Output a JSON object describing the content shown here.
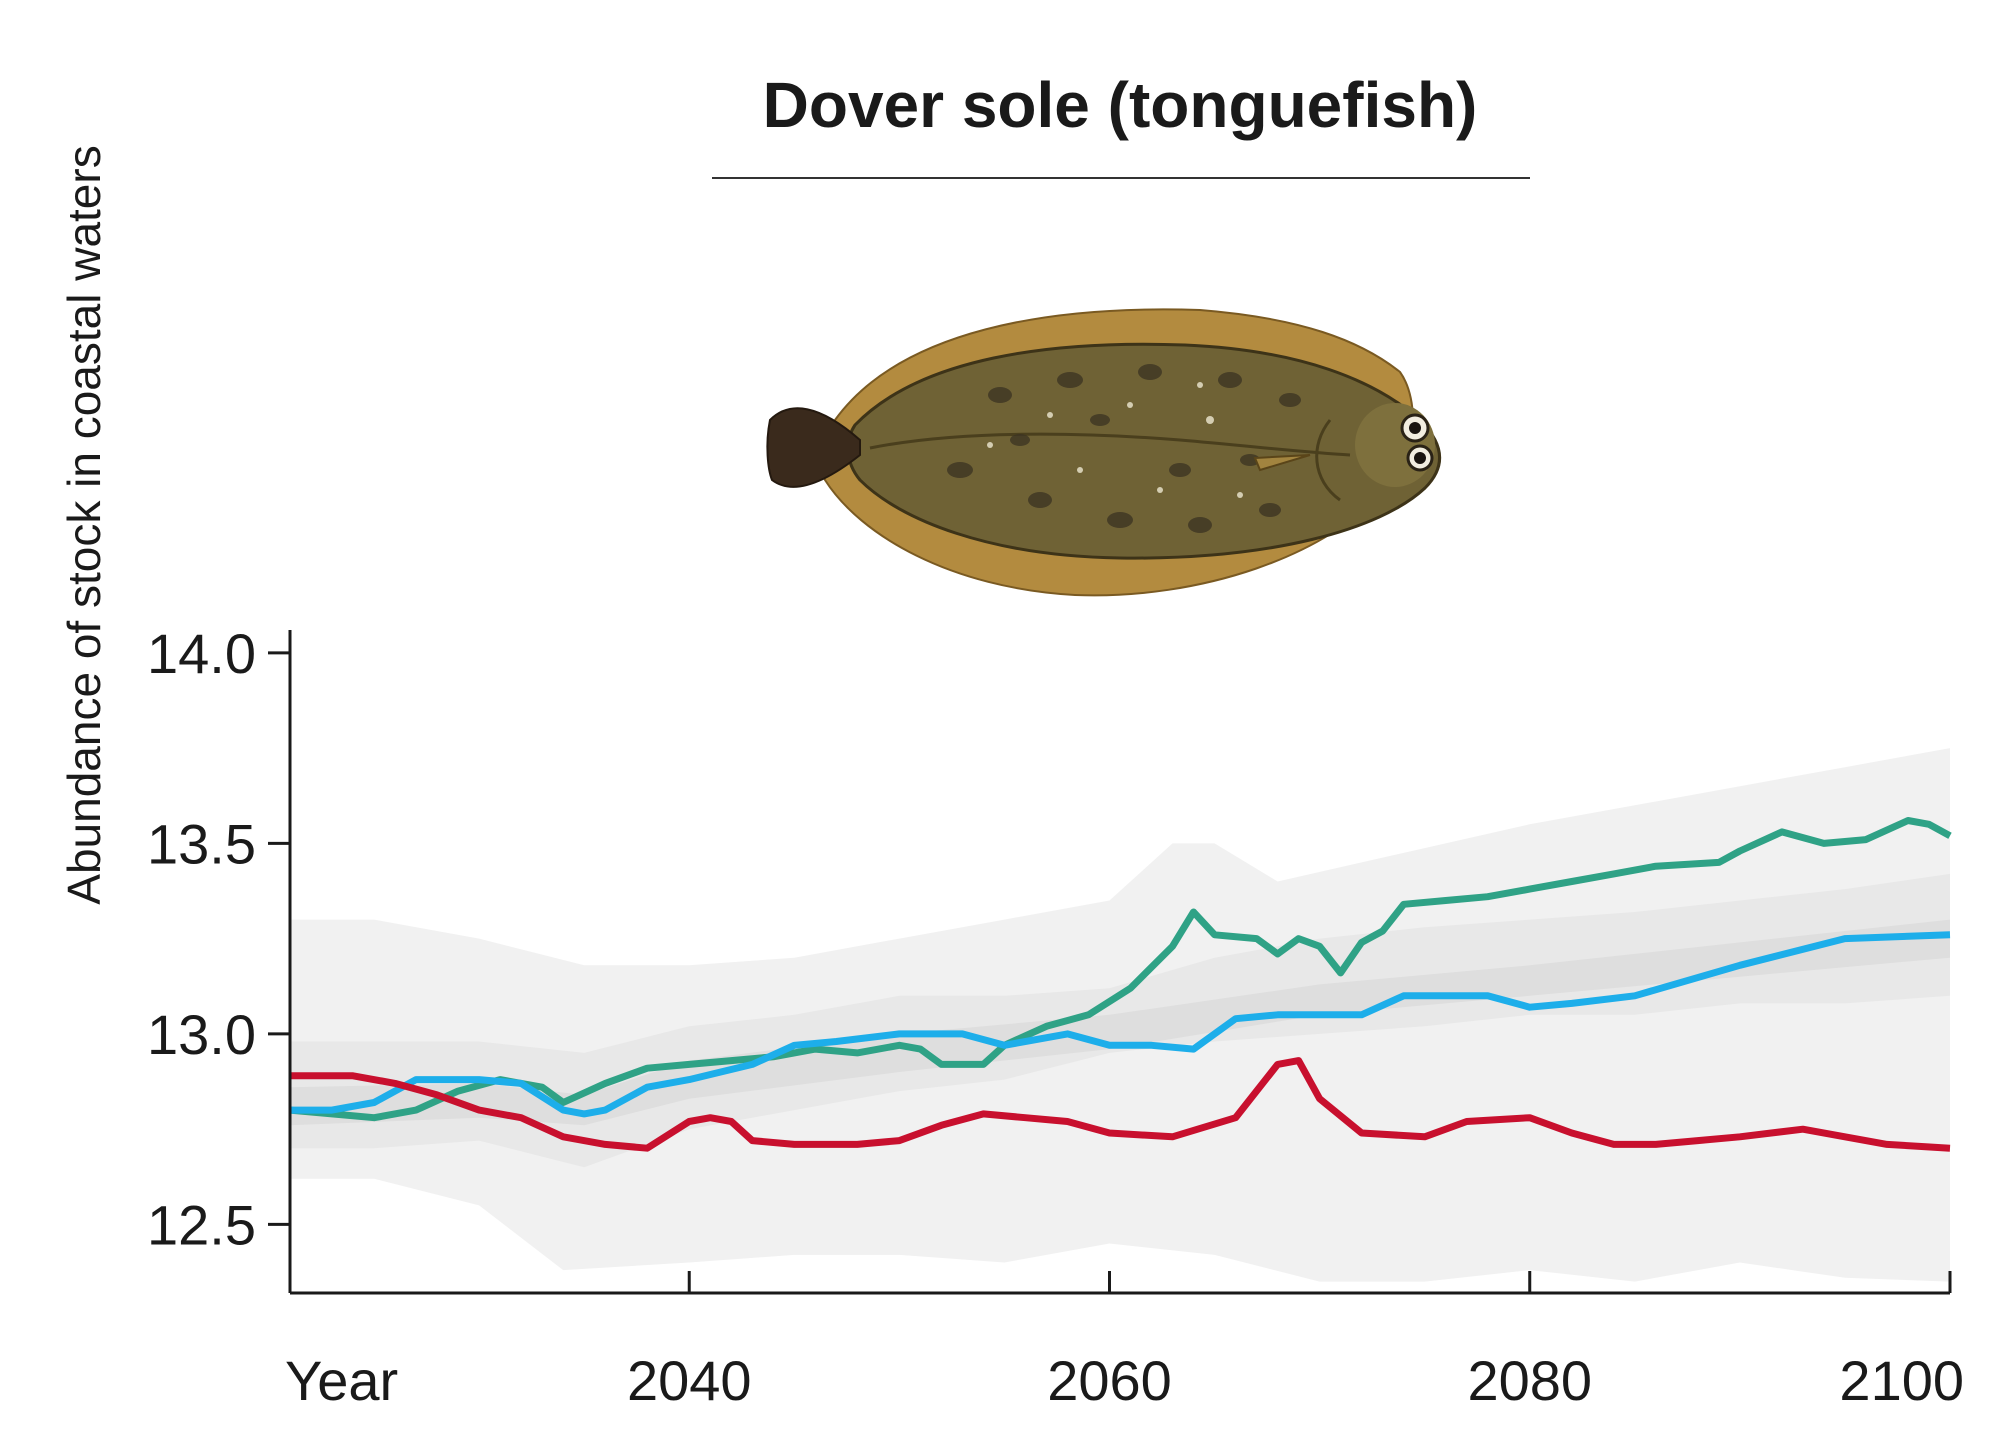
{
  "chart_data": {
    "type": "line",
    "title": "Dover sole (tonguefish)",
    "xlabel": "Year",
    "ylabel": "Abundance of stock in coastal waters",
    "xlim": [
      2021,
      2100
    ],
    "ylim": [
      12.32,
      14.06
    ],
    "x_ticks": [
      2040,
      2060,
      2080,
      2100
    ],
    "y_ticks": [
      12.5,
      13.0,
      13.5,
      14.0
    ],
    "x_tick_labels": [
      "2040",
      "2060",
      "2080",
      "2100"
    ],
    "y_tick_labels": [
      "12.5",
      "13.0",
      "13.5",
      "14.0"
    ],
    "grid": false,
    "legend": "none",
    "illustration": "dover-sole-fish-illustration",
    "bands": [
      {
        "color": "#f1f1f1",
        "upper": [
          [
            2021,
            13.3
          ],
          [
            2025,
            13.3
          ],
          [
            2030,
            13.25
          ],
          [
            2035,
            13.18
          ],
          [
            2040,
            13.18
          ],
          [
            2045,
            13.2
          ],
          [
            2050,
            13.25
          ],
          [
            2055,
            13.3
          ],
          [
            2060,
            13.35
          ],
          [
            2063,
            13.5
          ],
          [
            2065,
            13.5
          ],
          [
            2068,
            13.4
          ],
          [
            2072,
            13.45
          ],
          [
            2080,
            13.55
          ],
          [
            2085,
            13.6
          ],
          [
            2090,
            13.65
          ],
          [
            2095,
            13.7
          ],
          [
            2100,
            13.75
          ]
        ],
        "lower": [
          [
            2021,
            12.62
          ],
          [
            2025,
            12.62
          ],
          [
            2030,
            12.55
          ],
          [
            2034,
            12.38
          ],
          [
            2040,
            12.4
          ],
          [
            2045,
            12.42
          ],
          [
            2050,
            12.42
          ],
          [
            2055,
            12.4
          ],
          [
            2060,
            12.45
          ],
          [
            2065,
            12.42
          ],
          [
            2070,
            12.35
          ],
          [
            2075,
            12.35
          ],
          [
            2080,
            12.38
          ],
          [
            2085,
            12.35
          ],
          [
            2090,
            12.4
          ],
          [
            2095,
            12.36
          ],
          [
            2100,
            12.35
          ]
        ]
      },
      {
        "color": "#e8e8e8",
        "upper": [
          [
            2021,
            12.98
          ],
          [
            2025,
            12.98
          ],
          [
            2030,
            12.98
          ],
          [
            2035,
            12.95
          ],
          [
            2040,
            13.02
          ],
          [
            2045,
            13.05
          ],
          [
            2050,
            13.1
          ],
          [
            2055,
            13.1
          ],
          [
            2060,
            13.12
          ],
          [
            2065,
            13.2
          ],
          [
            2070,
            13.25
          ],
          [
            2075,
            13.28
          ],
          [
            2080,
            13.3
          ],
          [
            2085,
            13.32
          ],
          [
            2090,
            13.35
          ],
          [
            2095,
            13.38
          ],
          [
            2100,
            13.42
          ]
        ],
        "lower": [
          [
            2021,
            12.7
          ],
          [
            2025,
            12.7
          ],
          [
            2030,
            12.72
          ],
          [
            2035,
            12.65
          ],
          [
            2040,
            12.75
          ],
          [
            2045,
            12.8
          ],
          [
            2050,
            12.85
          ],
          [
            2055,
            12.88
          ],
          [
            2060,
            12.95
          ],
          [
            2065,
            12.98
          ],
          [
            2070,
            13.0
          ],
          [
            2075,
            13.02
          ],
          [
            2080,
            13.05
          ],
          [
            2085,
            13.05
          ],
          [
            2090,
            13.08
          ],
          [
            2095,
            13.08
          ],
          [
            2100,
            13.1
          ]
        ]
      },
      {
        "color": "#dedede",
        "upper": [
          [
            2021,
            12.86
          ],
          [
            2030,
            12.87
          ],
          [
            2035,
            12.84
          ],
          [
            2040,
            12.93
          ],
          [
            2050,
            13.0
          ],
          [
            2060,
            13.05
          ],
          [
            2070,
            13.13
          ],
          [
            2080,
            13.18
          ],
          [
            2090,
            13.24
          ],
          [
            2100,
            13.3
          ]
        ],
        "lower": [
          [
            2021,
            12.76
          ],
          [
            2030,
            12.78
          ],
          [
            2035,
            12.76
          ],
          [
            2040,
            12.83
          ],
          [
            2050,
            12.9
          ],
          [
            2060,
            12.96
          ],
          [
            2070,
            13.05
          ],
          [
            2080,
            13.1
          ],
          [
            2090,
            13.15
          ],
          [
            2100,
            13.2
          ]
        ]
      }
    ],
    "series": [
      {
        "color": "#2fa286",
        "values": [
          [
            2021,
            12.8
          ],
          [
            2023,
            12.79
          ],
          [
            2025,
            12.78
          ],
          [
            2027,
            12.8
          ],
          [
            2029,
            12.85
          ],
          [
            2031,
            12.88
          ],
          [
            2033,
            12.86
          ],
          [
            2034,
            12.82
          ],
          [
            2036,
            12.87
          ],
          [
            2038,
            12.91
          ],
          [
            2040,
            12.92
          ],
          [
            2042,
            12.93
          ],
          [
            2044,
            12.94
          ],
          [
            2046,
            12.96
          ],
          [
            2048,
            12.95
          ],
          [
            2050,
            12.97
          ],
          [
            2051,
            12.96
          ],
          [
            2052,
            12.92
          ],
          [
            2054,
            12.92
          ],
          [
            2055,
            12.97
          ],
          [
            2057,
            13.02
          ],
          [
            2059,
            13.05
          ],
          [
            2061,
            13.12
          ],
          [
            2063,
            13.23
          ],
          [
            2064,
            13.32
          ],
          [
            2065,
            13.26
          ],
          [
            2067,
            13.25
          ],
          [
            2068,
            13.21
          ],
          [
            2069,
            13.25
          ],
          [
            2070,
            13.23
          ],
          [
            2071,
            13.16
          ],
          [
            2072,
            13.24
          ],
          [
            2073,
            13.27
          ],
          [
            2074,
            13.34
          ],
          [
            2076,
            13.35
          ],
          [
            2078,
            13.36
          ],
          [
            2080,
            13.38
          ],
          [
            2082,
            13.4
          ],
          [
            2084,
            13.42
          ],
          [
            2086,
            13.44
          ],
          [
            2089,
            13.45
          ],
          [
            2090,
            13.48
          ],
          [
            2092,
            13.53
          ],
          [
            2094,
            13.5
          ],
          [
            2096,
            13.51
          ],
          [
            2098,
            13.56
          ],
          [
            2099,
            13.55
          ],
          [
            2100,
            13.52
          ]
        ]
      },
      {
        "color": "#1daeea",
        "values": [
          [
            2021,
            12.8
          ],
          [
            2023,
            12.8
          ],
          [
            2025,
            12.82
          ],
          [
            2027,
            12.88
          ],
          [
            2030,
            12.88
          ],
          [
            2032,
            12.87
          ],
          [
            2034,
            12.8
          ],
          [
            2035,
            12.79
          ],
          [
            2036,
            12.8
          ],
          [
            2038,
            12.86
          ],
          [
            2040,
            12.88
          ],
          [
            2043,
            12.92
          ],
          [
            2045,
            12.97
          ],
          [
            2047,
            12.98
          ],
          [
            2050,
            13.0
          ],
          [
            2053,
            13.0
          ],
          [
            2055,
            12.97
          ],
          [
            2058,
            13.0
          ],
          [
            2060,
            12.97
          ],
          [
            2062,
            12.97
          ],
          [
            2064,
            12.96
          ],
          [
            2066,
            13.04
          ],
          [
            2068,
            13.05
          ],
          [
            2072,
            13.05
          ],
          [
            2074,
            13.1
          ],
          [
            2076,
            13.1
          ],
          [
            2078,
            13.1
          ],
          [
            2080,
            13.07
          ],
          [
            2082,
            13.08
          ],
          [
            2085,
            13.1
          ],
          [
            2090,
            13.18
          ],
          [
            2095,
            13.25
          ],
          [
            2100,
            13.26
          ]
        ]
      },
      {
        "color": "#c8102e",
        "values": [
          [
            2021,
            12.89
          ],
          [
            2024,
            12.89
          ],
          [
            2026,
            12.87
          ],
          [
            2028,
            12.84
          ],
          [
            2030,
            12.8
          ],
          [
            2032,
            12.78
          ],
          [
            2034,
            12.73
          ],
          [
            2036,
            12.71
          ],
          [
            2038,
            12.7
          ],
          [
            2040,
            12.77
          ],
          [
            2041,
            12.78
          ],
          [
            2042,
            12.77
          ],
          [
            2043,
            12.72
          ],
          [
            2045,
            12.71
          ],
          [
            2048,
            12.71
          ],
          [
            2050,
            12.72
          ],
          [
            2052,
            12.76
          ],
          [
            2054,
            12.79
          ],
          [
            2056,
            12.78
          ],
          [
            2058,
            12.77
          ],
          [
            2060,
            12.74
          ],
          [
            2063,
            12.73
          ],
          [
            2066,
            12.78
          ],
          [
            2068,
            12.92
          ],
          [
            2069,
            12.93
          ],
          [
            2070,
            12.83
          ],
          [
            2072,
            12.74
          ],
          [
            2075,
            12.73
          ],
          [
            2077,
            12.77
          ],
          [
            2080,
            12.78
          ],
          [
            2082,
            12.74
          ],
          [
            2084,
            12.71
          ],
          [
            2086,
            12.71
          ],
          [
            2088,
            12.72
          ],
          [
            2090,
            12.73
          ],
          [
            2093,
            12.75
          ],
          [
            2095,
            12.73
          ],
          [
            2097,
            12.71
          ],
          [
            2100,
            12.7
          ]
        ]
      }
    ]
  }
}
